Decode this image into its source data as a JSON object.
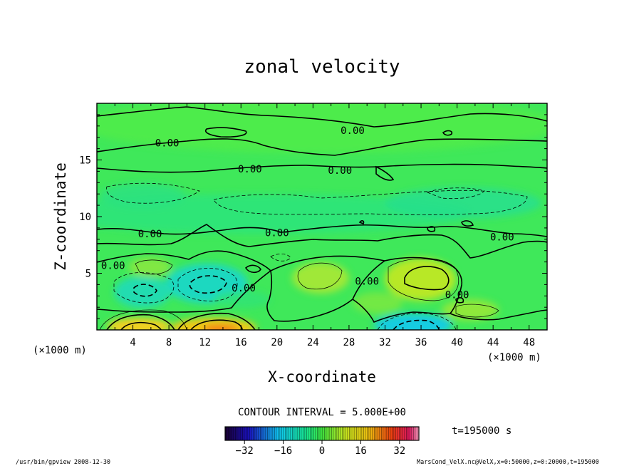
{
  "chart_data": {
    "type": "heatmap",
    "title": "zonal velocity",
    "xlabel": "X-coordinate",
    "ylabel": "Z-coordinate",
    "x_unit_left": "(×1000 m)",
    "x_unit_right": "(×1000 m)",
    "xlim": [
      0,
      50
    ],
    "ylim": [
      0,
      20
    ],
    "xticks": [
      4,
      8,
      12,
      16,
      20,
      24,
      28,
      32,
      36,
      40,
      44,
      48
    ],
    "yticks": [
      5,
      10,
      15
    ],
    "contour_interval_label": "CONTOUR INTERVAL = 5.000E+00",
    "time_label": "t=195000 s",
    "colorbar": {
      "min": -40,
      "max": 40,
      "ticks": [
        -32,
        -16,
        0,
        16,
        32
      ]
    },
    "zero_contour_labels": [
      {
        "text": "0.00",
        "x": 7.8,
        "z": 16.5
      },
      {
        "text": "0.00",
        "x": 28.4,
        "z": 17.6
      },
      {
        "text": "0.00",
        "x": 17.0,
        "z": 14.2
      },
      {
        "text": "0.00",
        "x": 27.0,
        "z": 14.1
      },
      {
        "text": "0.00",
        "x": 5.9,
        "z": 8.5
      },
      {
        "text": "0.00",
        "x": 20.0,
        "z": 8.6
      },
      {
        "text": "0.00",
        "x": 45.0,
        "z": 8.2
      },
      {
        "text": "0.00",
        "x": 1.8,
        "z": 5.7
      },
      {
        "text": "0.00",
        "x": 16.3,
        "z": 3.7
      },
      {
        "text": "0.00",
        "x": 30.0,
        "z": 4.3
      },
      {
        "text": "0.00",
        "x": 40.0,
        "z": 3.1
      }
    ]
  },
  "footer": {
    "left": "/usr/bin/gpview   2008-12-30",
    "right": "MarsCond_VelX.nc@VelX,x=0:50000,z=0:20000,t=195000"
  },
  "colors": {
    "background": "#ffffff",
    "base_field": "#3fe85a"
  }
}
